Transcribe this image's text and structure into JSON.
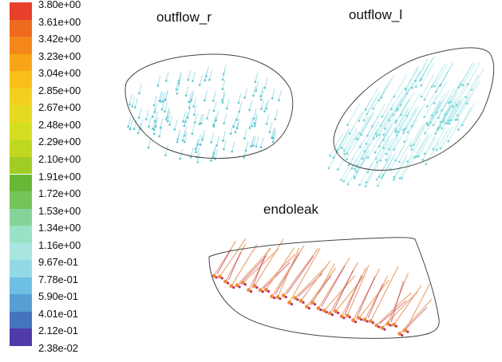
{
  "colorbar": {
    "ticks": [
      "3.80e+00",
      "3.61e+00",
      "3.42e+00",
      "3.23e+00",
      "3.04e+00",
      "2.85e+00",
      "2.67e+00",
      "2.48e+00",
      "2.29e+00",
      "2.10e+00",
      "1.91e+00",
      "1.72e+00",
      "1.53e+00",
      "1.34e+00",
      "1.16e+00",
      "9.67e-01",
      "7.78e-01",
      "5.90e-01",
      "4.01e-01",
      "2.12e-01",
      "2.38e-02"
    ],
    "colors": [
      "#e8402a",
      "#ee6a1f",
      "#f4861a",
      "#f7a516",
      "#f8bf18",
      "#f2d21e",
      "#e6da20",
      "#d6de21",
      "#c0d820",
      "#a0cc24",
      "#68b838",
      "#74c45a",
      "#86d39a",
      "#9ae2c6",
      "#a9e6e0",
      "#93d8e6",
      "#6ec0e2",
      "#569fd4",
      "#4474c0",
      "#4f3aa8"
    ]
  },
  "zones": {
    "outflow_r": {
      "label": "outflow_r",
      "vector_color": "#7fd3dc"
    },
    "outflow_l": {
      "label": "outflow_l",
      "vector_color": "#88dde0"
    },
    "endoleak": {
      "label": "endoleak",
      "vector_color": "#e89a5e",
      "accent_color": "#b8306a"
    }
  }
}
